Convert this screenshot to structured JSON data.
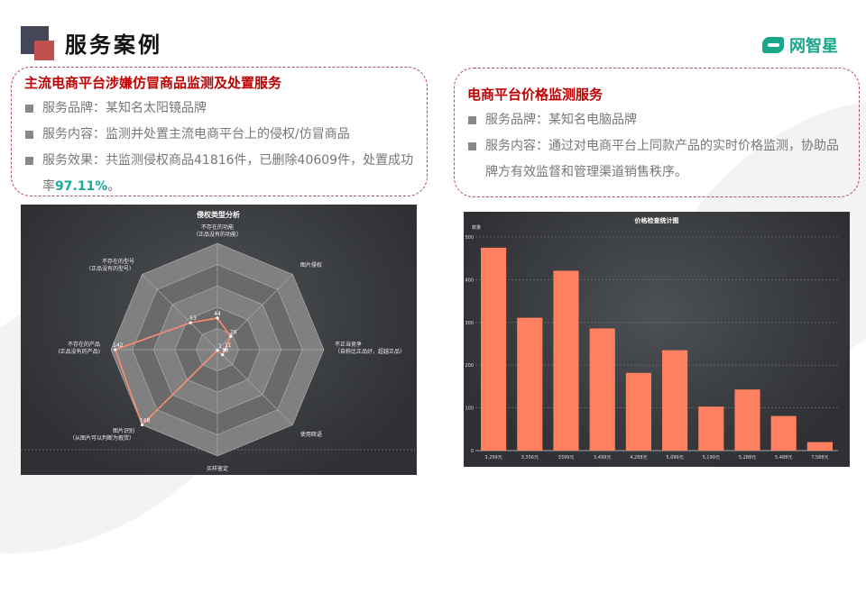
{
  "header": {
    "title": "服务案例",
    "logo_text": "网智星"
  },
  "card1": {
    "title": "主流电商平台涉嫌仿冒商品监测及处置服务",
    "items": [
      "服务品牌：某知名太阳镜品牌",
      "服务内容：监测并处置主流电商平台上的侵权/仿冒商品"
    ],
    "effect_prefix": "服务效果：共监测侵权商品41816件，已删除40609件，处置成功率",
    "effect_rate": "97.11%",
    "effect_suffix": "。"
  },
  "card2": {
    "title": "电商平台价格监测服务",
    "items": [
      "服务品牌：某知名电脑品牌",
      "服务内容：通过对电商平台上同款产品的实时价格监测，协助品牌方有效监督和管理渠道销售秩序。"
    ]
  },
  "colors": {
    "accent_red": "#c00000",
    "highlight": "#17a99a",
    "series": "#ff8060"
  },
  "chart_data": [
    {
      "type": "radar",
      "title": "侵权类型分析",
      "indicators": [
        "不存在的功能\n（正品没有的功能）",
        "图片侵权",
        "不正当竞争\n（自称比正品好，超越正品）",
        "使用暗语",
        "买样鉴定",
        "图片识别\n（从图片可以判断为假货）",
        "不存在的产品\n(正品没有的产品)",
        "不存在的型号\n（正品没有的型号）"
      ],
      "values": [
        44,
        26,
        11,
        10,
        1,
        148,
        142,
        53
      ],
      "max": 148
    },
    {
      "type": "bar",
      "title": "价格检查统计图",
      "ylabel": "数量",
      "categories": [
        "3,299元",
        "3,356元",
        "3399元",
        "3,499元",
        "4,288元",
        "5,099元",
        "5,199元",
        "5,288元",
        "5,488元",
        "7,588元"
      ],
      "values": [
        475,
        311,
        421,
        286,
        182,
        235,
        103,
        143,
        81,
        20
      ],
      "ylim": [
        0,
        500
      ],
      "yticks": [
        0,
        100,
        200,
        300,
        400,
        500
      ],
      "grid": true
    }
  ]
}
